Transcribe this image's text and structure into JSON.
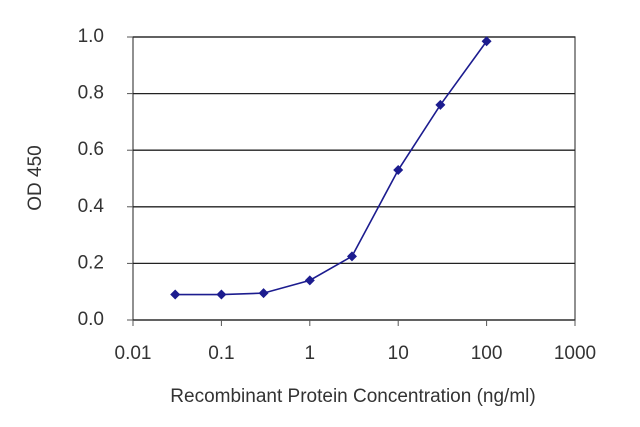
{
  "chart_data": {
    "type": "line",
    "xlabel": "Recombinant Protein Concentration (ng/ml)",
    "ylabel": "OD 450",
    "x": [
      0.03,
      0.1,
      0.3,
      1,
      3,
      10,
      30,
      100
    ],
    "series": [
      {
        "color": "#1c1c8f",
        "values": [
          0.09,
          0.09,
          0.095,
          0.14,
          0.225,
          0.53,
          0.76,
          0.985
        ]
      }
    ],
    "xscale": "log",
    "xlim": [
      0.01,
      1000
    ],
    "xticks": [
      0.01,
      0.1,
      1,
      10,
      100,
      1000
    ],
    "ylim": [
      0,
      1
    ],
    "yticks": [
      {
        "value": 0,
        "label": "0.0"
      },
      0.2,
      0.4,
      0.6,
      0.8,
      {
        "value": 1,
        "label": "1.0"
      }
    ],
    "grid": true
  }
}
